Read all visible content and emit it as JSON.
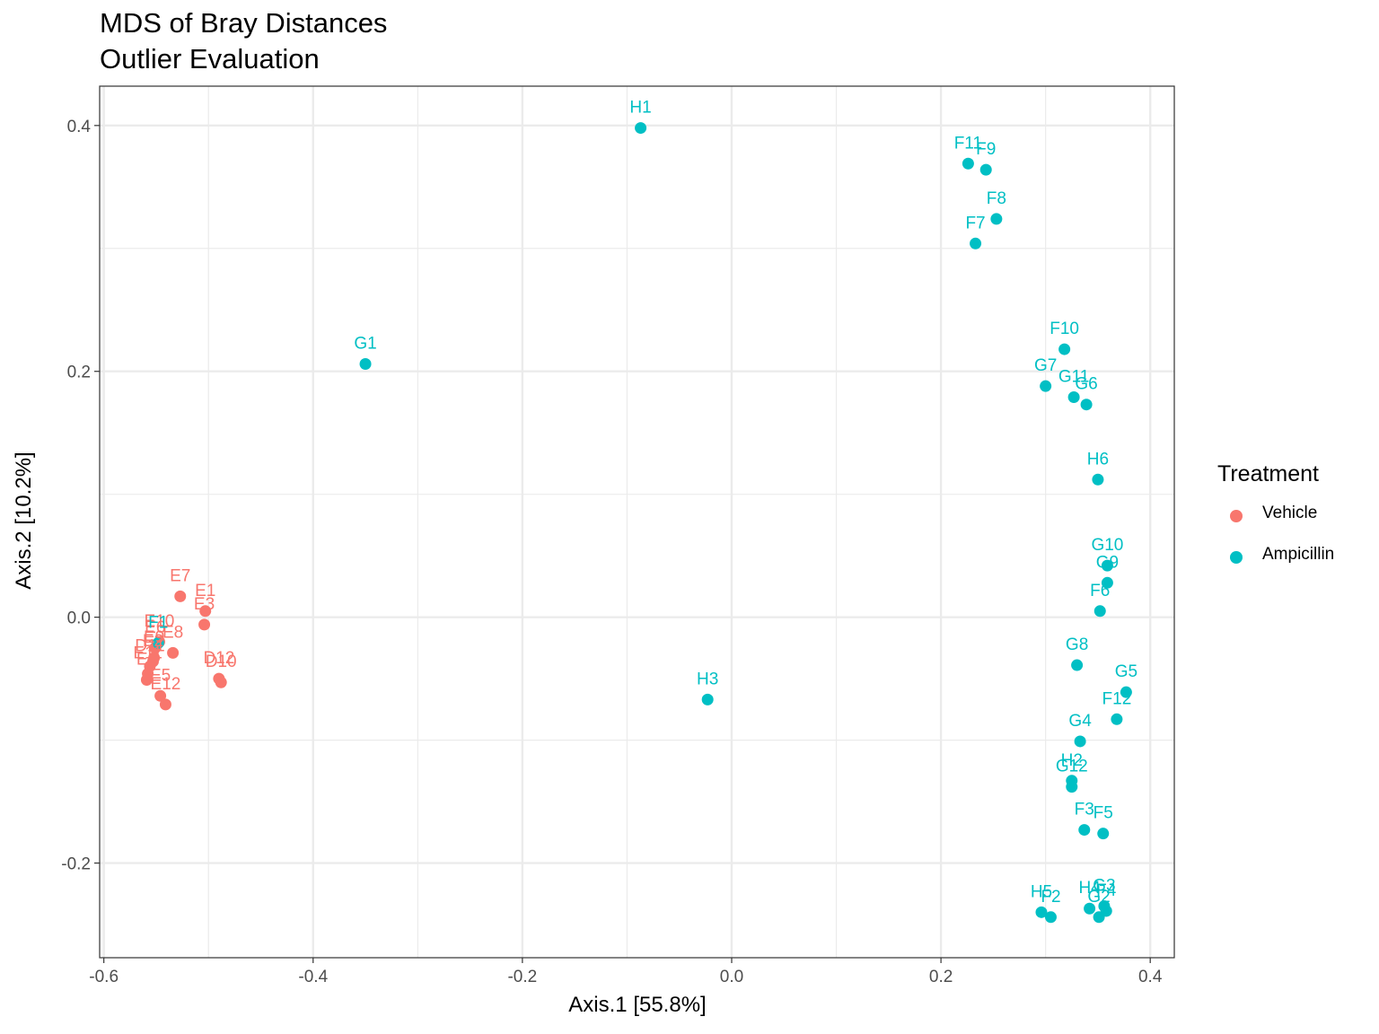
{
  "title": "MDS of Bray Distances",
  "subtitle": "Outlier Evaluation",
  "xlabel": "Axis.1   [55.8%]",
  "ylabel": "Axis.2   [10.2%]",
  "legend": {
    "title": "Treatment",
    "items": [
      {
        "label": "Vehicle",
        "color": "#F8766D"
      },
      {
        "label": "Ampicillin",
        "color": "#00BFC4"
      }
    ]
  },
  "chart_data": {
    "type": "scatter",
    "title": "MDS of Bray Distances",
    "subtitle": "Outlier Evaluation",
    "xlabel": "Axis.1   [55.8%]",
    "ylabel": "Axis.2   [10.2%]",
    "xlim": [
      -0.604,
      0.423
    ],
    "ylim": [
      -0.277,
      0.432
    ],
    "x_ticks": [
      -0.6,
      -0.4,
      -0.2,
      0.0,
      0.2,
      0.4
    ],
    "x_tick_labels": [
      "-0.6",
      "-0.4",
      "-0.2",
      "0.0",
      "0.2",
      "0.4"
    ],
    "y_ticks": [
      -0.2,
      0.0,
      0.2,
      0.4
    ],
    "y_tick_labels": [
      "-0.2",
      "0.0",
      "0.2",
      "0.4"
    ],
    "grid": true,
    "legend_position": "right",
    "series": [
      {
        "name": "Vehicle",
        "color": "#F8766D",
        "points": [
          {
            "label": "E7",
            "x": -0.527,
            "y": 0.017
          },
          {
            "label": "E1",
            "x": -0.503,
            "y": 0.005
          },
          {
            "label": "E3",
            "x": -0.504,
            "y": -0.006
          },
          {
            "label": "E8",
            "x": -0.534,
            "y": -0.029
          },
          {
            "label": "E10",
            "x": -0.547,
            "y": -0.02
          },
          {
            "label": "E6",
            "x": -0.551,
            "y": -0.025
          },
          {
            "label": "E9",
            "x": -0.552,
            "y": -0.033
          },
          {
            "label": "E2",
            "x": -0.553,
            "y": -0.036
          },
          {
            "label": "D11",
            "x": -0.556,
            "y": -0.04
          },
          {
            "label": "E11",
            "x": -0.558,
            "y": -0.046
          },
          {
            "label": "E4",
            "x": -0.559,
            "y": -0.051
          },
          {
            "label": "E5",
            "x": -0.546,
            "y": -0.064
          },
          {
            "label": "E12",
            "x": -0.541,
            "y": -0.071
          },
          {
            "label": "D12",
            "x": -0.49,
            "y": -0.05
          },
          {
            "label": "D10",
            "x": -0.488,
            "y": -0.053
          }
        ]
      },
      {
        "name": "Ampicillin",
        "color": "#00BFC4",
        "points": [
          {
            "label": "H1",
            "x": -0.087,
            "y": 0.398
          },
          {
            "label": "F11",
            "x": 0.226,
            "y": 0.369
          },
          {
            "label": "F9",
            "x": 0.243,
            "y": 0.364
          },
          {
            "label": "F8",
            "x": 0.253,
            "y": 0.324
          },
          {
            "label": "F7",
            "x": 0.233,
            "y": 0.304
          },
          {
            "label": "G1",
            "x": -0.35,
            "y": 0.206
          },
          {
            "label": "F10",
            "x": 0.318,
            "y": 0.218
          },
          {
            "label": "G7",
            "x": 0.3,
            "y": 0.188
          },
          {
            "label": "G11",
            "x": 0.327,
            "y": 0.179
          },
          {
            "label": "G6",
            "x": 0.339,
            "y": 0.173
          },
          {
            "label": "H6",
            "x": 0.35,
            "y": 0.112
          },
          {
            "label": "G10",
            "x": 0.359,
            "y": 0.042
          },
          {
            "label": "G9",
            "x": 0.359,
            "y": 0.028
          },
          {
            "label": "F6",
            "x": 0.352,
            "y": 0.005
          },
          {
            "label": "F1",
            "x": -0.548,
            "y": -0.021
          },
          {
            "label": "G8",
            "x": 0.33,
            "y": -0.039
          },
          {
            "label": "H3",
            "x": -0.023,
            "y": -0.067
          },
          {
            "label": "G5",
            "x": 0.377,
            "y": -0.061
          },
          {
            "label": "F12",
            "x": 0.368,
            "y": -0.083
          },
          {
            "label": "G4",
            "x": 0.333,
            "y": -0.101
          },
          {
            "label": "H2",
            "x": 0.325,
            "y": -0.133
          },
          {
            "label": "G12",
            "x": 0.325,
            "y": -0.138
          },
          {
            "label": "F3",
            "x": 0.337,
            "y": -0.173
          },
          {
            "label": "F5",
            "x": 0.355,
            "y": -0.176
          },
          {
            "label": "H5",
            "x": 0.296,
            "y": -0.24
          },
          {
            "label": "F2",
            "x": 0.305,
            "y": -0.244
          },
          {
            "label": "H4",
            "x": 0.342,
            "y": -0.237
          },
          {
            "label": "G3",
            "x": 0.356,
            "y": -0.235
          },
          {
            "label": "F4",
            "x": 0.358,
            "y": -0.239
          },
          {
            "label": "G2",
            "x": 0.351,
            "y": -0.244
          }
        ]
      }
    ]
  }
}
